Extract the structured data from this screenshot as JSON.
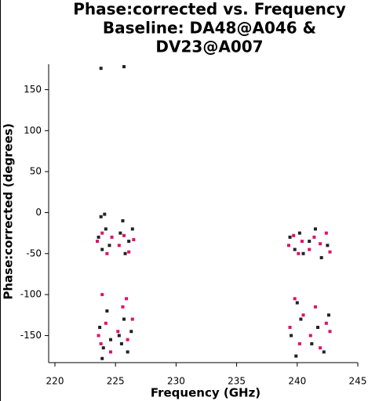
{
  "chart_data": {
    "type": "scatter",
    "title": [
      "Phase:corrected vs. Frequency",
      "Baseline: DA48@A046 &",
      "DV23@A007"
    ],
    "x_label": "Frequency (GHz)",
    "y_label": "Phase:corrected (degrees)",
    "xlim": [
      220,
      245
    ],
    "ylim": [
      -183,
      181
    ],
    "xticks": [
      220,
      225,
      230,
      235,
      240,
      245
    ],
    "yticks": [
      -150,
      -100,
      -50,
      0,
      50,
      100,
      150
    ],
    "series": [
      {
        "color": "#222222",
        "x": [
          223.6,
          223.9,
          224.2,
          224.5,
          223.8,
          224.1,
          225.4,
          225.8,
          226.1,
          226.4,
          225.6,
          223.7,
          224.0,
          224.3,
          224.6,
          223.9,
          225.3,
          225.7,
          226.0,
          226.3,
          225.5,
          223.8,
          225.7,
          239.4,
          239.8,
          240.2,
          240.5,
          241.0,
          241.5,
          242.0,
          242.5,
          239.5,
          239.9,
          240.3,
          241.2,
          241.7,
          242.2,
          242.6,
          240.0
        ],
        "values": [
          -30,
          -45,
          -20,
          -40,
          -5,
          -2,
          -25,
          -50,
          -35,
          -20,
          -10,
          -140,
          -165,
          -120,
          -155,
          -178,
          -150,
          -130,
          -170,
          -145,
          -160,
          176,
          178,
          -30,
          -45,
          -25,
          -50,
          -35,
          -20,
          -55,
          -40,
          -150,
          -175,
          -130,
          -160,
          -140,
          -170,
          -125,
          -110
        ]
      },
      {
        "color": "#e0106a",
        "x": [
          223.5,
          223.9,
          224.3,
          224.7,
          225.3,
          225.7,
          226.1,
          226.5,
          223.6,
          223.9,
          224.2,
          224.6,
          225.2,
          225.6,
          226.0,
          226.4,
          223.8,
          225.9,
          239.3,
          239.7,
          240.1,
          240.4,
          241.0,
          241.4,
          241.9,
          242.4,
          242.7,
          239.4,
          239.8,
          240.2,
          240.5,
          241.1,
          241.5,
          241.9,
          242.4,
          242.7
        ],
        "values": [
          -35,
          -25,
          -50,
          -30,
          -40,
          -28,
          -48,
          -33,
          -150,
          -100,
          -135,
          -170,
          -145,
          -115,
          -155,
          -130,
          -160,
          -105,
          -40,
          -28,
          -50,
          -35,
          -45,
          -30,
          -38,
          -25,
          -48,
          -140,
          -105,
          -160,
          -125,
          -150,
          -115,
          -165,
          -135,
          -145
        ]
      }
    ]
  }
}
